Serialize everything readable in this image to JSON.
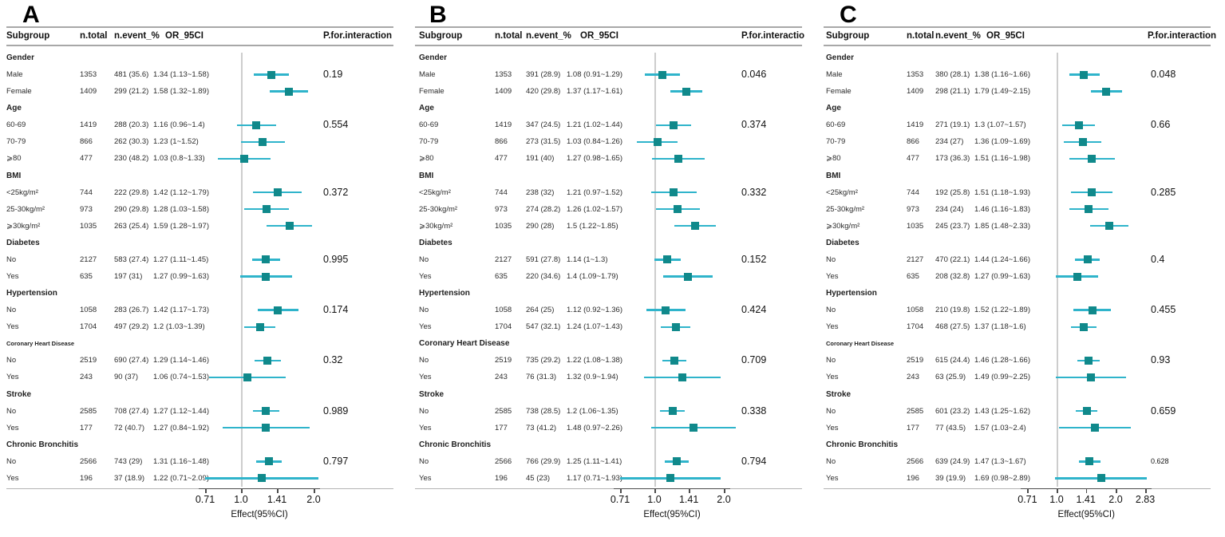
{
  "chart_data": [
    {
      "type": "forest",
      "panel": "A",
      "columns": {
        "subgroup": "Subgroup",
        "n_total": "n.total",
        "n_event": "n.event_%",
        "or": "OR_95CI",
        "p": "P.for.interaction"
      },
      "axis": {
        "scale": "log2",
        "tick_values": [
          0.71,
          1.0,
          1.41,
          2.0
        ],
        "tick_labels": [
          "0.71",
          "1.0",
          "1.41",
          "2.0"
        ],
        "xlabel": "Effect(95%CI)"
      },
      "rows": [
        {
          "t": "cat",
          "label": "Gender"
        },
        {
          "t": "d",
          "label": "Male",
          "n": "1353",
          "ev": "481 (35.6)",
          "ci": "1.34 (1.13~1.58)",
          "est": 1.34,
          "lo": 1.13,
          "hi": 1.58,
          "p": "0.19"
        },
        {
          "t": "d",
          "label": "Female",
          "n": "1409",
          "ev": "299 (21.2)",
          "ci": "1.58 (1.32~1.89)",
          "est": 1.58,
          "lo": 1.32,
          "hi": 1.89
        },
        {
          "t": "cat",
          "label": "Age"
        },
        {
          "t": "d",
          "label": "60-69",
          "n": "1419",
          "ev": "288 (20.3)",
          "ci": "1.16 (0.96~1.4)",
          "est": 1.16,
          "lo": 0.96,
          "hi": 1.4,
          "p": "0.554"
        },
        {
          "t": "d",
          "label": "70-79",
          "n": "866",
          "ev": "262 (30.3)",
          "ci": "1.23 (1~1.52)",
          "est": 1.23,
          "lo": 1.0,
          "hi": 1.52
        },
        {
          "t": "d",
          "label": "⩾80",
          "n": "477",
          "ev": "230 (48.2)",
          "ci": "1.03 (0.8~1.33)",
          "est": 1.03,
          "lo": 0.8,
          "hi": 1.33
        },
        {
          "t": "cat",
          "label": "BMI"
        },
        {
          "t": "d",
          "label": "<25kg/m²",
          "n": "744",
          "ev": "222 (29.8)",
          "ci": "1.42 (1.12~1.79)",
          "est": 1.42,
          "lo": 1.12,
          "hi": 1.79,
          "p": "0.372"
        },
        {
          "t": "d",
          "label": "25-30kg/m²",
          "n": "973",
          "ev": "290 (29.8)",
          "ci": "1.28 (1.03~1.58)",
          "est": 1.28,
          "lo": 1.03,
          "hi": 1.58
        },
        {
          "t": "d",
          "label": "⩾30kg/m²",
          "n": "1035",
          "ev": "263 (25.4)",
          "ci": "1.59 (1.28~1.97)",
          "est": 1.59,
          "lo": 1.28,
          "hi": 1.97
        },
        {
          "t": "cat",
          "label": "Diabetes"
        },
        {
          "t": "d",
          "label": "No",
          "n": "2127",
          "ev": "583 (27.4)",
          "ci": "1.27 (1.11~1.45)",
          "est": 1.27,
          "lo": 1.11,
          "hi": 1.45,
          "p": "0.995"
        },
        {
          "t": "d",
          "label": "Yes",
          "n": "635",
          "ev": "197 (31)",
          "ci": "1.27 (0.99~1.63)",
          "est": 1.27,
          "lo": 0.99,
          "hi": 1.63
        },
        {
          "t": "cat",
          "label": "Hypertension"
        },
        {
          "t": "d",
          "label": "No",
          "n": "1058",
          "ev": "283 (26.7)",
          "ci": "1.42 (1.17~1.73)",
          "est": 1.42,
          "lo": 1.17,
          "hi": 1.73,
          "p": "0.174"
        },
        {
          "t": "d",
          "label": "Yes",
          "n": "1704",
          "ev": "497 (29.2)",
          "ci": "1.2 (1.03~1.39)",
          "est": 1.2,
          "lo": 1.03,
          "hi": 1.39
        },
        {
          "t": "cat",
          "label": "Coronary Heart Disease",
          "small": true
        },
        {
          "t": "d",
          "label": "No",
          "n": "2519",
          "ev": "690 (27.4)",
          "ci": "1.29 (1.14~1.46)",
          "est": 1.29,
          "lo": 1.14,
          "hi": 1.46,
          "p": "0.32"
        },
        {
          "t": "d",
          "label": "Yes",
          "n": "243",
          "ev": "90 (37)",
          "ci": "1.06 (0.74~1.53)",
          "est": 1.06,
          "lo": 0.74,
          "hi": 1.53
        },
        {
          "t": "cat",
          "label": "Stroke"
        },
        {
          "t": "d",
          "label": "No",
          "n": "2585",
          "ev": "708 (27.4)",
          "ci": "1.27 (1.12~1.44)",
          "est": 1.27,
          "lo": 1.12,
          "hi": 1.44,
          "p": "0.989"
        },
        {
          "t": "d",
          "label": "Yes",
          "n": "177",
          "ev": "72 (40.7)",
          "ci": "1.27 (0.84~1.92)",
          "est": 1.27,
          "lo": 0.84,
          "hi": 1.92
        },
        {
          "t": "cat",
          "label": "Chronic Bronchitis"
        },
        {
          "t": "d",
          "label": "No",
          "n": "2566",
          "ev": "743 (29)",
          "ci": "1.31 (1.16~1.48)",
          "est": 1.31,
          "lo": 1.16,
          "hi": 1.48,
          "p": "0.797"
        },
        {
          "t": "d",
          "label": "Yes",
          "n": "196",
          "ev": "37 (18.9)",
          "ci": "1.22 (0.71~2.09)",
          "est": 1.22,
          "lo": 0.71,
          "hi": 2.09
        }
      ]
    },
    {
      "type": "forest",
      "panel": "B",
      "columns": {
        "subgroup": "Subgroup",
        "n_total": "n.total",
        "n_event": "n.event_%",
        "or": "OR_95CI",
        "p": "P.for.interactio"
      },
      "axis": {
        "scale": "log2",
        "tick_values": [
          0.71,
          1.0,
          1.41,
          2.0
        ],
        "tick_labels": [
          "0.71",
          "1.0",
          "1.41",
          "2.0"
        ],
        "xlabel": "Effect(95%CI)"
      },
      "rows": [
        {
          "t": "cat",
          "label": "Gender"
        },
        {
          "t": "d",
          "label": "Male",
          "n": "1353",
          "ev": "391 (28.9)",
          "ci": "1.08 (0.91~1.29)",
          "est": 1.08,
          "lo": 0.91,
          "hi": 1.29,
          "p": "0.046"
        },
        {
          "t": "d",
          "label": "Female",
          "n": "1409",
          "ev": "420 (29.8)",
          "ci": "1.37 (1.17~1.61)",
          "est": 1.37,
          "lo": 1.17,
          "hi": 1.61
        },
        {
          "t": "cat",
          "label": "Age"
        },
        {
          "t": "d",
          "label": "60-69",
          "n": "1419",
          "ev": "347 (24.5)",
          "ci": "1.21 (1.02~1.44)",
          "est": 1.21,
          "lo": 1.02,
          "hi": 1.44,
          "p": "0.374"
        },
        {
          "t": "d",
          "label": "70-79",
          "n": "866",
          "ev": "273 (31.5)",
          "ci": "1.03 (0.84~1.26)",
          "est": 1.03,
          "lo": 0.84,
          "hi": 1.26
        },
        {
          "t": "d",
          "label": "⩾80",
          "n": "477",
          "ev": "191 (40)",
          "ci": "1.27 (0.98~1.65)",
          "est": 1.27,
          "lo": 0.98,
          "hi": 1.65
        },
        {
          "t": "cat",
          "label": "BMI"
        },
        {
          "t": "d",
          "label": "<25kg/m²",
          "n": "744",
          "ev": "238 (32)",
          "ci": "1.21 (0.97~1.52)",
          "est": 1.21,
          "lo": 0.97,
          "hi": 1.52,
          "p": "0.332"
        },
        {
          "t": "d",
          "label": "25-30kg/m²",
          "n": "973",
          "ev": "274 (28.2)",
          "ci": "1.26 (1.02~1.57)",
          "est": 1.26,
          "lo": 1.02,
          "hi": 1.57
        },
        {
          "t": "d",
          "label": "⩾30kg/m²",
          "n": "1035",
          "ev": "290 (28)",
          "ci": "1.5 (1.22~1.85)",
          "est": 1.5,
          "lo": 1.22,
          "hi": 1.85
        },
        {
          "t": "cat",
          "label": "Diabetes"
        },
        {
          "t": "d",
          "label": "No",
          "n": "2127",
          "ev": "591 (27.8)",
          "ci": "1.14 (1~1.3)",
          "est": 1.14,
          "lo": 1.0,
          "hi": 1.3,
          "p": "0.152"
        },
        {
          "t": "d",
          "label": "Yes",
          "n": "635",
          "ev": "220 (34.6)",
          "ci": "1.4 (1.09~1.79)",
          "est": 1.4,
          "lo": 1.09,
          "hi": 1.79
        },
        {
          "t": "cat",
          "label": "Hypertension"
        },
        {
          "t": "d",
          "label": "No",
          "n": "1058",
          "ev": "264 (25)",
          "ci": "1.12 (0.92~1.36)",
          "est": 1.12,
          "lo": 0.92,
          "hi": 1.36,
          "p": "0.424"
        },
        {
          "t": "d",
          "label": "Yes",
          "n": "1704",
          "ev": "547 (32.1)",
          "ci": "1.24 (1.07~1.43)",
          "est": 1.24,
          "lo": 1.07,
          "hi": 1.43
        },
        {
          "t": "cat",
          "label": "Coronary Heart Disease"
        },
        {
          "t": "d",
          "label": "No",
          "n": "2519",
          "ev": "735 (29.2)",
          "ci": "1.22 (1.08~1.38)",
          "est": 1.22,
          "lo": 1.08,
          "hi": 1.38,
          "p": "0.709"
        },
        {
          "t": "d",
          "label": "Yes",
          "n": "243",
          "ev": "76 (31.3)",
          "ci": "1.32 (0.9~1.94)",
          "est": 1.32,
          "lo": 0.9,
          "hi": 1.94
        },
        {
          "t": "cat",
          "label": "Stroke"
        },
        {
          "t": "d",
          "label": "No",
          "n": "2585",
          "ev": "738 (28.5)",
          "ci": "1.2 (1.06~1.35)",
          "est": 1.2,
          "lo": 1.06,
          "hi": 1.35,
          "p": "0.338"
        },
        {
          "t": "d",
          "label": "Yes",
          "n": "177",
          "ev": "73 (41.2)",
          "ci": "1.48 (0.97~2.26)",
          "est": 1.48,
          "lo": 0.97,
          "hi": 2.26
        },
        {
          "t": "cat",
          "label": "Chronic Bronchitis"
        },
        {
          "t": "d",
          "label": "No",
          "n": "2566",
          "ev": "766 (29.9)",
          "ci": "1.25 (1.11~1.41)",
          "est": 1.25,
          "lo": 1.11,
          "hi": 1.41,
          "p": "0.794"
        },
        {
          "t": "d",
          "label": "Yes",
          "n": "196",
          "ev": "45 (23)",
          "ci": "1.17 (0.71~1.93)",
          "est": 1.17,
          "lo": 0.71,
          "hi": 1.93
        }
      ]
    },
    {
      "type": "forest",
      "panel": "C",
      "columns": {
        "subgroup": "Subgroup",
        "n_total": "n.total",
        "n_event": "n.event_%",
        "or": "OR_95CI",
        "p": "P.for.interaction"
      },
      "axis": {
        "scale": "log2",
        "tick_values": [
          0.71,
          1.0,
          1.41,
          2.0,
          2.83
        ],
        "tick_labels": [
          "0.71",
          "1.0",
          "1.41",
          "2.0",
          "2.83"
        ],
        "xlabel": "Effect(95%CI)"
      },
      "rows": [
        {
          "t": "cat",
          "label": "Gender"
        },
        {
          "t": "d",
          "label": "Male",
          "n": "1353",
          "ev": "380 (28.1)",
          "ci": "1.38 (1.16~1.66)",
          "est": 1.38,
          "lo": 1.16,
          "hi": 1.66,
          "p": "0.048"
        },
        {
          "t": "d",
          "label": "Female",
          "n": "1409",
          "ev": "298 (21.1)",
          "ci": "1.79 (1.49~2.15)",
          "est": 1.79,
          "lo": 1.49,
          "hi": 2.15
        },
        {
          "t": "cat",
          "label": "Age"
        },
        {
          "t": "d",
          "label": "60-69",
          "n": "1419",
          "ev": "271 (19.1)",
          "ci": "1.3 (1.07~1.57)",
          "est": 1.3,
          "lo": 1.07,
          "hi": 1.57,
          "p": "0.66"
        },
        {
          "t": "d",
          "label": "70-79",
          "n": "866",
          "ev": "234 (27)",
          "ci": "1.36 (1.09~1.69)",
          "est": 1.36,
          "lo": 1.09,
          "hi": 1.69
        },
        {
          "t": "d",
          "label": "⩾80",
          "n": "477",
          "ev": "173 (36.3)",
          "ci": "1.51 (1.16~1.98)",
          "est": 1.51,
          "lo": 1.16,
          "hi": 1.98
        },
        {
          "t": "cat",
          "label": "BMI"
        },
        {
          "t": "d",
          "label": "<25kg/m²",
          "n": "744",
          "ev": "192 (25.8)",
          "ci": "1.51 (1.18~1.93)",
          "est": 1.51,
          "lo": 1.18,
          "hi": 1.93,
          "p": "0.285"
        },
        {
          "t": "d",
          "label": "25-30kg/m²",
          "n": "973",
          "ev": "234 (24)",
          "ci": "1.46 (1.16~1.83)",
          "est": 1.46,
          "lo": 1.16,
          "hi": 1.83
        },
        {
          "t": "d",
          "label": "⩾30kg/m²",
          "n": "1035",
          "ev": "245 (23.7)",
          "ci": "1.85 (1.48~2.33)",
          "est": 1.85,
          "lo": 1.48,
          "hi": 2.33
        },
        {
          "t": "cat",
          "label": "Diabetes"
        },
        {
          "t": "d",
          "label": "No",
          "n": "2127",
          "ev": "470 (22.1)",
          "ci": "1.44 (1.24~1.66)",
          "est": 1.44,
          "lo": 1.24,
          "hi": 1.66,
          "p": "0.4"
        },
        {
          "t": "d",
          "label": "Yes",
          "n": "635",
          "ev": "208 (32.8)",
          "ci": "1.27 (0.99~1.63)",
          "est": 1.27,
          "lo": 0.99,
          "hi": 1.63
        },
        {
          "t": "cat",
          "label": "Hypertension"
        },
        {
          "t": "d",
          "label": "No",
          "n": "1058",
          "ev": "210 (19.8)",
          "ci": "1.52 (1.22~1.89)",
          "est": 1.52,
          "lo": 1.22,
          "hi": 1.89,
          "p": "0.455"
        },
        {
          "t": "d",
          "label": "Yes",
          "n": "1704",
          "ev": "468 (27.5)",
          "ci": "1.37 (1.18~1.6)",
          "est": 1.37,
          "lo": 1.18,
          "hi": 1.6
        },
        {
          "t": "cat",
          "label": "Coronary Heart Disease",
          "small": true
        },
        {
          "t": "d",
          "label": "No",
          "n": "2519",
          "ev": "615 (24.4)",
          "ci": "1.46 (1.28~1.66)",
          "est": 1.46,
          "lo": 1.28,
          "hi": 1.66,
          "p": "0.93"
        },
        {
          "t": "d",
          "label": "Yes",
          "n": "243",
          "ev": "63 (25.9)",
          "ci": "1.49 (0.99~2.25)",
          "est": 1.49,
          "lo": 0.99,
          "hi": 2.25
        },
        {
          "t": "cat",
          "label": "Stroke"
        },
        {
          "t": "d",
          "label": "No",
          "n": "2585",
          "ev": "601 (23.2)",
          "ci": "1.43 (1.25~1.62)",
          "est": 1.43,
          "lo": 1.25,
          "hi": 1.62,
          "p": "0.659"
        },
        {
          "t": "d",
          "label": "Yes",
          "n": "177",
          "ev": "77 (43.5)",
          "ci": "1.57 (1.03~2.4)",
          "est": 1.57,
          "lo": 1.03,
          "hi": 2.4
        },
        {
          "t": "cat",
          "label": "Chronic Bronchitis"
        },
        {
          "t": "d",
          "label": "No",
          "n": "2566",
          "ev": "639 (24.9)",
          "ci": "1.47 (1.3~1.67)",
          "est": 1.47,
          "lo": 1.3,
          "hi": 1.67,
          "p": "0.628",
          "p_small": true
        },
        {
          "t": "d",
          "label": "Yes",
          "n": "196",
          "ev": "39 (19.9)",
          "ci": "1.69 (0.98~2.89)",
          "est": 1.69,
          "lo": 0.98,
          "hi": 2.89
        }
      ]
    }
  ]
}
